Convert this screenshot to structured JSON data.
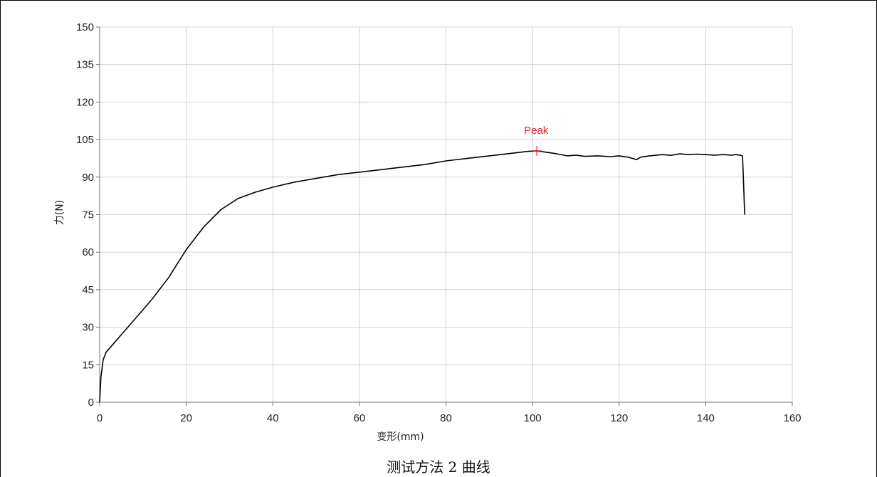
{
  "caption": "测试方法 2 曲线",
  "colors": {
    "curve": "#000000",
    "peak": "#e0202a",
    "grid": "#d0d0d0",
    "axis": "#707070"
  },
  "chart_data": {
    "type": "line",
    "xlabel": "变形(mm)",
    "ylabel": "力(N)",
    "xlim": [
      0,
      160
    ],
    "ylim": [
      0,
      150
    ],
    "xticks": [
      0,
      20,
      40,
      60,
      80,
      100,
      120,
      140,
      160
    ],
    "yticks": [
      0,
      15,
      30,
      45,
      60,
      75,
      90,
      105,
      120,
      135,
      150
    ],
    "grid": true,
    "peak": {
      "label": "Peak",
      "x": 101,
      "y": 100.5
    },
    "series": [
      {
        "x": [
          0,
          0.3,
          0.8,
          1.5,
          3,
          5,
          8,
          12,
          16,
          20,
          24,
          28,
          32,
          36,
          40,
          45,
          50,
          55,
          60,
          65,
          70,
          75,
          80,
          85,
          90,
          95,
          99,
          101,
          103,
          105,
          108,
          110,
          112,
          115,
          118,
          120,
          122,
          123,
          124,
          125,
          127,
          130,
          132,
          134,
          136,
          138,
          140,
          142,
          144,
          146,
          147,
          148,
          148.5,
          148.8,
          149
        ],
        "y": [
          0,
          10,
          17,
          20,
          23,
          27,
          33,
          41,
          50,
          61,
          70,
          77,
          81.5,
          84,
          86,
          88,
          89.5,
          91,
          92,
          93,
          94,
          95,
          96.5,
          97.5,
          98.5,
          99.5,
          100.3,
          100.5,
          100,
          99.5,
          98.5,
          98.8,
          98.3,
          98.5,
          98.2,
          98.5,
          98,
          97.5,
          97,
          98,
          98.5,
          99,
          98.7,
          99.3,
          99,
          99.2,
          99,
          98.8,
          99,
          98.8,
          99,
          98.8,
          98.5,
          85,
          75
        ]
      }
    ]
  }
}
